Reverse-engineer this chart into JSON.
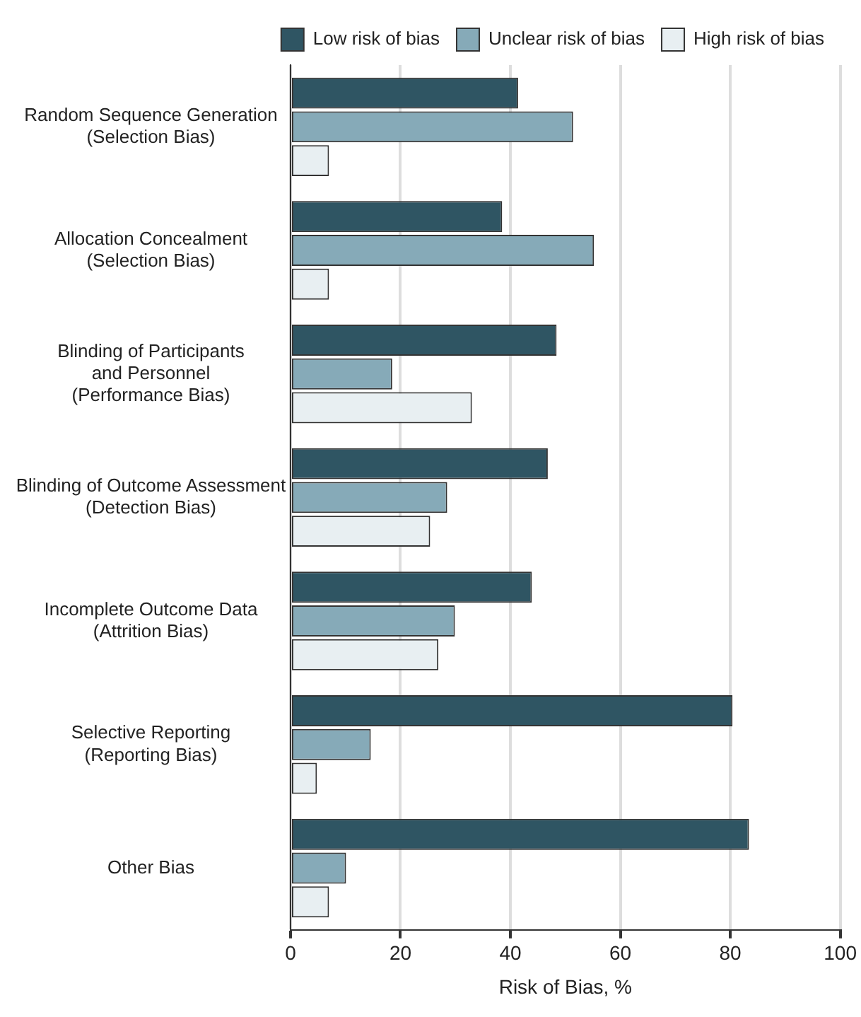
{
  "chart_data": {
    "type": "bar",
    "orientation": "horizontal",
    "xlabel": "Risk of Bias, %",
    "categories": [
      "Random Sequence Generation\n(Selection Bias)",
      "Allocation Concealment\n(Selection Bias)",
      "Blinding of Participants\nand Personnel\n(Performance Bias)",
      "Blinding of Outcome Assessment\n(Detection Bias)",
      "Incomplete Outcome Data\n(Attrition Bias)",
      "Selective Reporting\n(Reporting Bias)",
      "Other Bias"
    ],
    "series": [
      {
        "name": "Low risk of bias",
        "color": "#2f5563",
        "values": [
          41.4,
          38.5,
          48.4,
          46.8,
          43.9,
          80.4,
          83.4
        ]
      },
      {
        "name": "Unclear risk of bias",
        "color": "#86aab8",
        "values": [
          51.4,
          55.2,
          18.5,
          28.5,
          29.9,
          14.6,
          10.1
        ]
      },
      {
        "name": "High risk of bias",
        "color": "#e8eff2",
        "values": [
          7.0,
          7.0,
          33.0,
          25.4,
          26.9,
          4.8,
          7.0
        ]
      }
    ],
    "xlim": [
      0,
      100
    ],
    "xticks": [
      0,
      20,
      40,
      60,
      80,
      100
    ],
    "grid": "x",
    "legend": "top right"
  }
}
